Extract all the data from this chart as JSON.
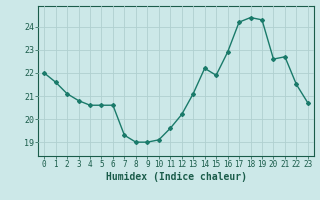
{
  "x": [
    0,
    1,
    2,
    3,
    4,
    5,
    6,
    7,
    8,
    9,
    10,
    11,
    12,
    13,
    14,
    15,
    16,
    17,
    18,
    19,
    20,
    21,
    22,
    23
  ],
  "y": [
    22.0,
    21.6,
    21.1,
    20.8,
    20.6,
    20.6,
    20.6,
    19.3,
    19.0,
    19.0,
    19.1,
    19.6,
    20.2,
    21.1,
    22.2,
    21.9,
    22.9,
    24.2,
    24.4,
    24.3,
    22.6,
    22.7,
    21.5,
    20.7
  ],
  "line_color": "#1a7a6a",
  "marker": "D",
  "marker_size": 2.0,
  "linewidth": 1.0,
  "bg_color": "#cce8e8",
  "grid_color": "#b0d0d0",
  "xlabel": "Humidex (Indice chaleur)",
  "xlabel_fontsize": 7,
  "ylabel_ticks": [
    19,
    20,
    21,
    22,
    23,
    24
  ],
  "xlim": [
    -0.5,
    23.5
  ],
  "ylim": [
    18.4,
    24.9
  ],
  "tick_color": "#1a5c4a",
  "axis_color": "#1a5c4a",
  "font_family": "monospace",
  "tick_fontsize": 5.5,
  "ytick_fontsize": 6.0
}
